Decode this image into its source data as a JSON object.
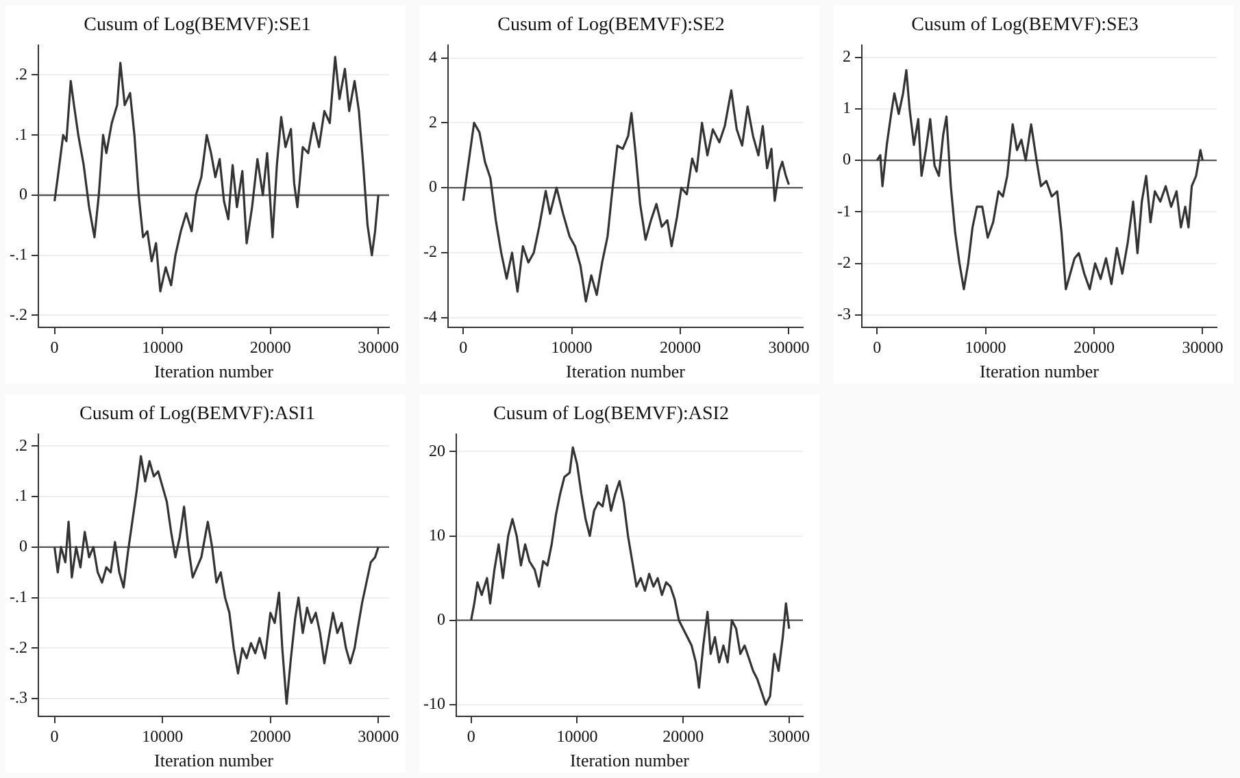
{
  "chart_data": [
    {
      "type": "line",
      "title": "Cusum of Log(BEMVF):SE1",
      "xlabel": "Iteration number",
      "marker": "none",
      "grid": "y",
      "xlim": [
        -1500,
        31000
      ],
      "ylim": [
        -0.22,
        0.25
      ],
      "xticks": [
        0,
        10000,
        20000,
        30000
      ],
      "yticks": [
        {
          "value": -0.2,
          "label": "-.2"
        },
        {
          "value": -0.1,
          "label": "-.1"
        },
        0,
        {
          "value": 0.1,
          "label": ".1"
        },
        {
          "value": 0.2,
          "label": ".2"
        }
      ],
      "ref_lines": [
        {
          "axis": "y",
          "value": 0,
          "color": "#555555"
        }
      ],
      "series": [
        {
          "color": "#333333",
          "x": [
            0,
            300,
            800,
            1100,
            1500,
            1800,
            2200,
            2700,
            3200,
            3700,
            4100,
            4500,
            4800,
            5300,
            5800,
            6100,
            6500,
            7000,
            7400,
            7800,
            8200,
            8600,
            9000,
            9400,
            9800,
            10300,
            10800,
            11200,
            11700,
            12200,
            12700,
            13100,
            13600,
            14100,
            14500,
            14900,
            15300,
            15700,
            16100,
            16500,
            16900,
            17400,
            17800,
            18300,
            18800,
            19300,
            19700,
            20200,
            20600,
            21000,
            21400,
            21900,
            22200,
            22500,
            23000,
            23500,
            24000,
            24500,
            25000,
            25500,
            26000,
            26400,
            26900,
            27300,
            27800,
            28200,
            28600,
            29000,
            29400,
            29700,
            30000
          ],
          "values": [
            -0.01,
            0.03,
            0.1,
            0.09,
            0.19,
            0.15,
            0.1,
            0.05,
            -0.02,
            -0.07,
            0.0,
            0.1,
            0.07,
            0.12,
            0.15,
            0.22,
            0.15,
            0.17,
            0.1,
            0.0,
            -0.07,
            -0.06,
            -0.11,
            -0.08,
            -0.16,
            -0.12,
            -0.15,
            -0.1,
            -0.06,
            -0.03,
            -0.06,
            0.0,
            0.03,
            0.1,
            0.07,
            0.03,
            0.06,
            -0.01,
            -0.04,
            0.05,
            -0.02,
            0.04,
            -0.08,
            -0.02,
            0.06,
            0.0,
            0.07,
            -0.07,
            0.05,
            0.13,
            0.08,
            0.11,
            0.02,
            -0.02,
            0.08,
            0.07,
            0.12,
            0.08,
            0.14,
            0.12,
            0.23,
            0.16,
            0.21,
            0.14,
            0.19,
            0.14,
            0.05,
            -0.05,
            -0.1,
            -0.06,
            0.0
          ]
        }
      ]
    },
    {
      "type": "line",
      "title": "Cusum of Log(BEMVF):SE2",
      "xlabel": "Iteration number",
      "marker": "none",
      "grid": "y",
      "xlim": [
        -1400,
        31300
      ],
      "ylim": [
        -4.3,
        4.4
      ],
      "xticks": [
        0,
        10000,
        20000,
        30000
      ],
      "yticks": [
        -4,
        -2,
        0,
        2,
        4
      ],
      "ref_lines": [
        {
          "axis": "y",
          "value": 0,
          "color": "#555555"
        }
      ],
      "series": [
        {
          "color": "#333333",
          "x": [
            0,
            500,
            1000,
            1500,
            2000,
            2500,
            3000,
            3500,
            4000,
            4500,
            5000,
            5500,
            6000,
            6500,
            7000,
            7600,
            8000,
            8600,
            9200,
            9800,
            10300,
            10800,
            11300,
            11800,
            12300,
            12800,
            13300,
            13700,
            14200,
            14700,
            15200,
            15500,
            15900,
            16300,
            16800,
            17300,
            17800,
            18300,
            18800,
            19200,
            19700,
            20100,
            20600,
            21100,
            21500,
            22000,
            22500,
            23000,
            23600,
            24100,
            24700,
            25200,
            25700,
            26200,
            26700,
            27200,
            27600,
            28000,
            28400,
            28700,
            29100,
            29400,
            29700,
            30000
          ],
          "values": [
            -0.4,
            0.8,
            2.0,
            1.7,
            0.8,
            0.3,
            -1.0,
            -2.0,
            -2.8,
            -2.0,
            -3.2,
            -1.8,
            -2.3,
            -2.0,
            -1.2,
            -0.1,
            -0.8,
            0.0,
            -0.8,
            -1.5,
            -1.8,
            -2.4,
            -3.5,
            -2.7,
            -3.3,
            -2.3,
            -1.5,
            -0.2,
            1.3,
            1.2,
            1.6,
            2.3,
            1.0,
            -0.5,
            -1.6,
            -1.0,
            -0.5,
            -1.2,
            -1.0,
            -1.8,
            -0.9,
            0.0,
            -0.2,
            0.9,
            0.5,
            2.0,
            1.0,
            1.8,
            1.4,
            1.9,
            3.0,
            1.8,
            1.3,
            2.5,
            1.6,
            1.0,
            1.9,
            0.6,
            1.2,
            -0.4,
            0.5,
            0.8,
            0.4,
            0.1
          ]
        }
      ]
    },
    {
      "type": "line",
      "title": "Cusum of Log(BEMVF):SE3",
      "xlabel": "Iteration number",
      "marker": "none",
      "grid": "y",
      "xlim": [
        -1400,
        31300
      ],
      "ylim": [
        -3.24,
        2.24
      ],
      "xticks": [
        0,
        10000,
        20000,
        30000
      ],
      "yticks": [
        -3,
        -2,
        -1,
        0,
        1,
        2
      ],
      "ref_lines": [
        {
          "axis": "y",
          "value": 0,
          "color": "#555555"
        }
      ],
      "series": [
        {
          "color": "#333333",
          "x": [
            0,
            300,
            500,
            900,
            1300,
            1600,
            2000,
            2400,
            2700,
            3000,
            3400,
            3800,
            4100,
            4500,
            4900,
            5300,
            5700,
            6100,
            6400,
            6800,
            7200,
            7600,
            8000,
            8400,
            8800,
            9200,
            9700,
            10200,
            10700,
            11200,
            11600,
            12000,
            12500,
            12900,
            13300,
            13700,
            14200,
            14700,
            15100,
            15600,
            16100,
            16600,
            17000,
            17400,
            17800,
            18200,
            18600,
            19100,
            19600,
            20100,
            20600,
            21100,
            21600,
            22100,
            22600,
            23100,
            23600,
            24000,
            24400,
            24800,
            25200,
            25600,
            26100,
            26600,
            27100,
            27600,
            28000,
            28400,
            28700,
            29000,
            29400,
            29800,
            30000
          ],
          "values": [
            0.0,
            0.1,
            -0.5,
            0.3,
            0.9,
            1.3,
            0.9,
            1.3,
            1.75,
            1.0,
            0.3,
            0.8,
            -0.3,
            0.2,
            0.8,
            -0.1,
            -0.3,
            0.5,
            0.85,
            -0.5,
            -1.4,
            -2.0,
            -2.5,
            -2.0,
            -1.3,
            -0.9,
            -0.9,
            -1.5,
            -1.2,
            -0.6,
            -0.7,
            -0.3,
            0.7,
            0.2,
            0.4,
            0.0,
            0.7,
            0.0,
            -0.5,
            -0.4,
            -0.7,
            -0.6,
            -1.4,
            -2.5,
            -2.2,
            -1.9,
            -1.8,
            -2.2,
            -2.5,
            -2.0,
            -2.3,
            -1.9,
            -2.4,
            -1.7,
            -2.2,
            -1.6,
            -0.8,
            -1.8,
            -0.8,
            -0.3,
            -1.2,
            -0.6,
            -0.8,
            -0.5,
            -0.9,
            -0.6,
            -1.3,
            -0.9,
            -1.3,
            -0.5,
            -0.3,
            0.2,
            0.0
          ]
        }
      ]
    },
    {
      "type": "line",
      "title": "Cusum of Log(BEMVF):ASI1",
      "xlabel": "Iteration number",
      "marker": "none",
      "grid": "y",
      "xlim": [
        -1500,
        31000
      ],
      "ylim": [
        -0.335,
        0.224
      ],
      "xticks": [
        0,
        10000,
        20000,
        30000
      ],
      "yticks": [
        {
          "value": -0.3,
          "label": "-.3"
        },
        {
          "value": -0.2,
          "label": "-.2"
        },
        {
          "value": -0.1,
          "label": "-.1"
        },
        0,
        {
          "value": 0.1,
          "label": ".1"
        },
        {
          "value": 0.2,
          "label": ".2"
        }
      ],
      "ref_lines": [
        {
          "axis": "y",
          "value": 0,
          "color": "#555555"
        }
      ],
      "series": [
        {
          "color": "#333333",
          "x": [
            0,
            300,
            600,
            1000,
            1300,
            1600,
            2000,
            2400,
            2800,
            3200,
            3600,
            4000,
            4400,
            4800,
            5200,
            5600,
            6000,
            6400,
            6800,
            7200,
            7600,
            8000,
            8400,
            8800,
            9200,
            9600,
            10000,
            10400,
            10800,
            11200,
            11600,
            12000,
            12400,
            12800,
            13200,
            13600,
            14200,
            14600,
            15000,
            15400,
            15800,
            16200,
            16600,
            17000,
            17400,
            17800,
            18200,
            18600,
            19000,
            19500,
            20000,
            20400,
            20800,
            21100,
            21500,
            21900,
            22300,
            22600,
            23000,
            23400,
            23800,
            24200,
            24600,
            25000,
            25400,
            25800,
            26200,
            26600,
            27000,
            27400,
            27800,
            28100,
            28500,
            28900,
            29300,
            29700,
            30000
          ],
          "values": [
            0.0,
            -0.05,
            0.0,
            -0.03,
            0.05,
            -0.06,
            0.0,
            -0.04,
            0.03,
            -0.02,
            0.0,
            -0.05,
            -0.07,
            -0.04,
            -0.05,
            0.01,
            -0.05,
            -0.08,
            -0.01,
            0.05,
            0.11,
            0.18,
            0.13,
            0.17,
            0.14,
            0.15,
            0.12,
            0.09,
            0.03,
            -0.02,
            0.02,
            0.08,
            0.0,
            -0.06,
            -0.04,
            -0.02,
            0.05,
            0.0,
            -0.07,
            -0.05,
            -0.1,
            -0.13,
            -0.2,
            -0.25,
            -0.2,
            -0.22,
            -0.19,
            -0.21,
            -0.18,
            -0.22,
            -0.13,
            -0.15,
            -0.09,
            -0.2,
            -0.31,
            -0.22,
            -0.14,
            -0.1,
            -0.17,
            -0.12,
            -0.15,
            -0.13,
            -0.17,
            -0.23,
            -0.18,
            -0.13,
            -0.17,
            -0.15,
            -0.2,
            -0.23,
            -0.2,
            -0.16,
            -0.11,
            -0.07,
            -0.03,
            -0.02,
            0.0
          ]
        }
      ]
    },
    {
      "type": "line",
      "title": "Cusum of Log(BEMVF):ASI2",
      "xlabel": "Iteration number",
      "marker": "none",
      "grid": "y",
      "xlim": [
        -1400,
        31300
      ],
      "ylim": [
        -11.4,
        22.1
      ],
      "xticks": [
        0,
        10000,
        20000,
        30000
      ],
      "yticks": [
        -10,
        0,
        10,
        20
      ],
      "ref_lines": [
        {
          "axis": "y",
          "value": 0,
          "color": "#555555"
        }
      ],
      "series": [
        {
          "color": "#333333",
          "x": [
            0,
            300,
            600,
            1000,
            1500,
            1800,
            2200,
            2600,
            3000,
            3500,
            3900,
            4300,
            4700,
            5100,
            5500,
            6000,
            6400,
            6800,
            7200,
            7600,
            8000,
            8400,
            8800,
            9300,
            9600,
            10000,
            10400,
            10800,
            11200,
            11600,
            12000,
            12400,
            12800,
            13200,
            13600,
            14000,
            14400,
            14800,
            15200,
            15600,
            16000,
            16400,
            16800,
            17200,
            17600,
            18000,
            18400,
            18800,
            19200,
            19600,
            20000,
            20400,
            20800,
            21200,
            21500,
            21900,
            22300,
            22600,
            23000,
            23400,
            23800,
            24200,
            24600,
            25000,
            25400,
            25800,
            26200,
            26600,
            27000,
            27400,
            27800,
            28200,
            28600,
            29000,
            29400,
            29700,
            30000
          ],
          "values": [
            0,
            2,
            4.5,
            3,
            5,
            2,
            6,
            9,
            5,
            10,
            12,
            10,
            6.5,
            9,
            7,
            6,
            4,
            7,
            6.5,
            9,
            12.5,
            15,
            17,
            17.5,
            20.5,
            18.5,
            15,
            12,
            10,
            13,
            14,
            13.5,
            16,
            13,
            15,
            16.5,
            14,
            10,
            7,
            4,
            5,
            3.5,
            5.5,
            4,
            5,
            3,
            4.5,
            4,
            2.5,
            0,
            -1,
            -2,
            -3,
            -5,
            -8,
            -3,
            1,
            -4,
            -2,
            -5,
            -3,
            -5,
            0,
            -1,
            -4,
            -3,
            -4.5,
            -6,
            -7,
            -8.5,
            -10,
            -9,
            -4,
            -6,
            -2,
            2,
            -1
          ]
        }
      ]
    }
  ]
}
